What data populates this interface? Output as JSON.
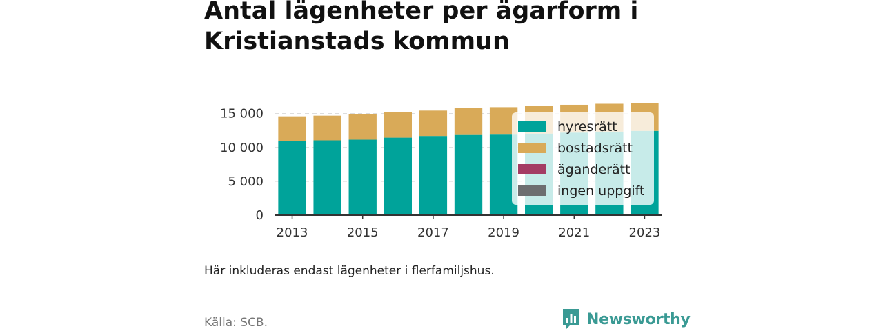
{
  "title": "Antal lägenheter per ägarform i Kristianstads kommun",
  "note": "Här inkluderas endast lägenheter i flerfamiljshus.",
  "source": "Källa: SCB.",
  "brand": "Newsworthy",
  "colors": {
    "hyresratt": "#00a39a",
    "bostadsratt": "#d9aa58",
    "aganderatt": "#a43c64",
    "ingen_uppgift": "#6d6e70",
    "axis": "#333333",
    "grid": "#dddddd",
    "brand": "#3a9a94"
  },
  "chart_data": {
    "type": "bar",
    "stacked": true,
    "categories": [
      "2013",
      "2014",
      "2015",
      "2016",
      "2017",
      "2018",
      "2019",
      "2020",
      "2021",
      "2022",
      "2023"
    ],
    "x_tick_labels": [
      "2013",
      "2015",
      "2017",
      "2019",
      "2021",
      "2023"
    ],
    "series": [
      {
        "name": "hyresrätt",
        "color": "#00a39a",
        "values": [
          10950,
          11050,
          11150,
          11450,
          11700,
          11850,
          11900,
          12050,
          12200,
          12350,
          12450
        ]
      },
      {
        "name": "bostadsrätt",
        "color": "#d9aa58",
        "values": [
          3650,
          3650,
          3750,
          3750,
          3750,
          4000,
          4050,
          4050,
          4100,
          4100,
          4150
        ]
      },
      {
        "name": "äganderätt",
        "color": "#a43c64",
        "values": [
          0,
          0,
          0,
          0,
          0,
          0,
          0,
          0,
          0,
          0,
          0
        ]
      },
      {
        "name": "ingen uppgift",
        "color": "#6d6e70",
        "values": [
          0,
          0,
          0,
          0,
          0,
          0,
          0,
          0,
          0,
          0,
          0
        ]
      }
    ],
    "ylim": [
      0,
      16500
    ],
    "y_ticks": [
      0,
      5000,
      10000,
      15000
    ],
    "y_tick_labels": [
      "0",
      "5 000",
      "10 000",
      "15 000"
    ],
    "grid": true,
    "legend_position": "right, overlapping bars"
  }
}
